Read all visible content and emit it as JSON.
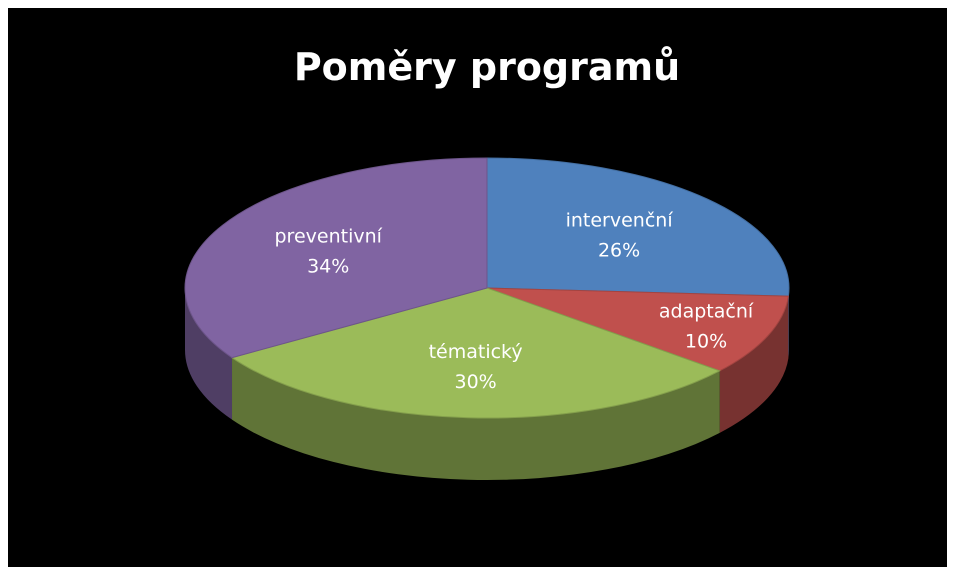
{
  "chart_data": {
    "type": "pie",
    "title": "Poměry programů",
    "categories": [
      "intervenční",
      "adaptační",
      "tématický",
      "preventivní"
    ],
    "values": [
      26,
      10,
      30,
      34
    ],
    "value_labels": [
      "26%",
      "10%",
      "30%",
      "34%"
    ],
    "colors": [
      "#4f81bd",
      "#c0504d",
      "#9bbb59",
      "#8064a2"
    ]
  }
}
